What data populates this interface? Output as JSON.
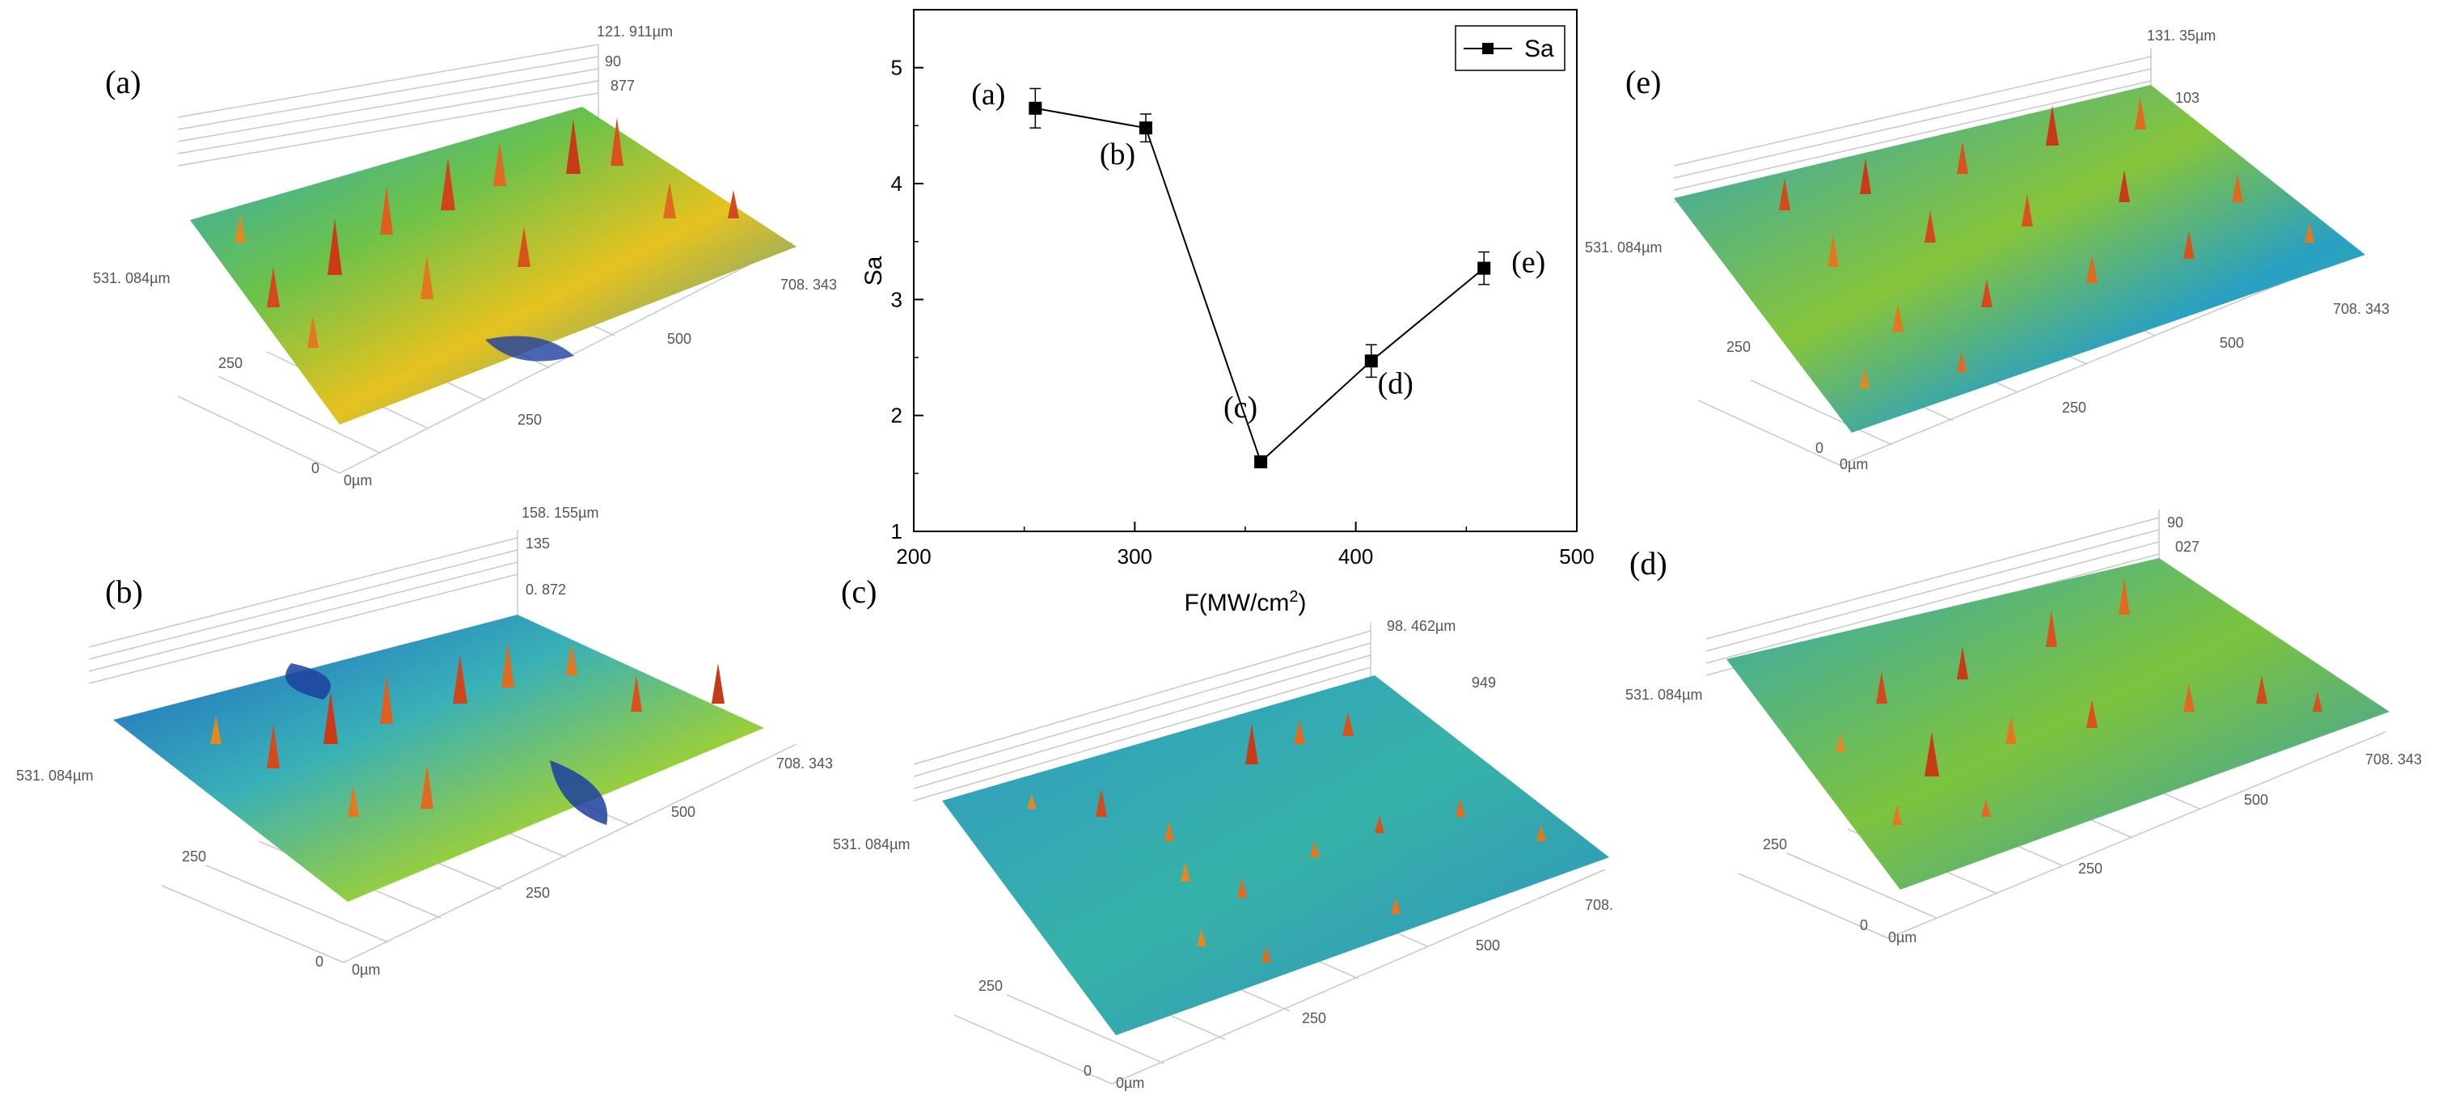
{
  "chart_data": {
    "type": "line",
    "title": "",
    "xlabel": "F(MW/cm",
    "xlabel_sup": "2",
    "xlabel_tail": ")",
    "ylabel": "Sa",
    "xlim": [
      200,
      500
    ],
    "ylim": [
      1,
      5.5
    ],
    "xticks": [
      "200",
      "300",
      "400",
      "500"
    ],
    "yticks": [
      "1",
      "2",
      "3",
      "4",
      "5"
    ],
    "legend": "top-right",
    "series": [
      {
        "name": "Sa",
        "color": "#000000",
        "x": [
          255,
          305,
          357,
          407,
          458
        ],
        "y": [
          4.65,
          4.48,
          1.6,
          2.47,
          3.27
        ],
        "err": [
          0.17,
          0.12,
          0.03,
          0.14,
          0.14
        ],
        "labels": [
          "(a)",
          "(b)",
          "(c)",
          "(d)",
          "(e)"
        ]
      }
    ]
  },
  "surfaces": [
    {
      "id": "a",
      "label": "(a)",
      "top": "121. 911µm",
      "zt": "90",
      "zt2": "877",
      "y": "531. 084µm",
      "x": "708. 343",
      "x500": "500",
      "x250": "250",
      "y250": "250",
      "y0": "0",
      "origin": "0µm"
    },
    {
      "id": "b",
      "label": "(b)",
      "top": "158. 155µm",
      "zt": "135",
      "zt2": "0. 872",
      "y": "531. 084µm",
      "x": "708. 343",
      "x500": "500",
      "x250": "250",
      "y250": "250",
      "y0": "0",
      "origin": "0µm"
    },
    {
      "id": "c",
      "label": "(c)",
      "top": "98. 462µm",
      "zt": "",
      "zt2": "949",
      "y": "531. 084µm",
      "x": "708.",
      "x500": "500",
      "x250": "250",
      "y250": "250",
      "y0": "0",
      "origin": "0µm"
    },
    {
      "id": "d",
      "label": "(d)",
      "top": "",
      "zt": "90",
      "zt2": "027",
      "y": "531. 084µm",
      "x": "708. 343",
      "x500": "500",
      "x250": "250",
      "y250": "250",
      "y0": "0",
      "origin": "0µm"
    },
    {
      "id": "e",
      "label": "(e)",
      "top": "131. 35µm",
      "zt": "",
      "zt2": "103",
      "y": "531. 084µm",
      "x": "708. 343",
      "x500": "500",
      "x250": "250",
      "y250": "250",
      "y0": "0",
      "origin": "0µm"
    }
  ]
}
